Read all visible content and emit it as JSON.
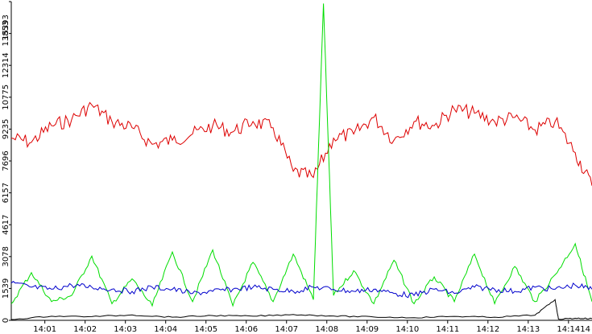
{
  "chart_data": {
    "type": "line",
    "title": "",
    "xlabel": "",
    "ylabel": "",
    "grid": false,
    "legend": "none",
    "ylim": [
      0,
      15393
    ],
    "xlim": [
      "14:00:10",
      "14:14:35"
    ],
    "y_ticks": [
      "0",
      "1539",
      "3078",
      "4617",
      "6157",
      "7696",
      "9235",
      "10775",
      "12314",
      "13853",
      "15393"
    ],
    "x_ticks": [
      "14:01",
      "14:02",
      "14:03",
      "14:04",
      "14:05",
      "14:06",
      "14:07",
      "14:08",
      "14:09",
      "14:10",
      "14:11",
      "14:12",
      "14:13",
      "14:14",
      "14"
    ],
    "series": [
      {
        "color": "#dd0000",
        "x": [
          "14:00:10",
          "14:00:40",
          "14:01:10",
          "14:01:40",
          "14:02:10",
          "14:02:40",
          "14:03:10",
          "14:03:40",
          "14:04:10",
          "14:04:40",
          "14:05:10",
          "14:05:40",
          "14:06:10",
          "14:06:40",
          "14:07:10",
          "14:07:40",
          "14:08:10",
          "14:08:40",
          "14:09:10",
          "14:09:40",
          "14:10:10",
          "14:10:40",
          "14:11:10",
          "14:11:40",
          "14:12:10",
          "14:12:40",
          "14:13:10",
          "14:13:40",
          "14:14:10",
          "14:14:35"
        ],
        "values": [
          8800,
          8600,
          9400,
          9700,
          10400,
          9600,
          9300,
          8500,
          8700,
          9000,
          9400,
          9100,
          9600,
          9300,
          7200,
          6900,
          8800,
          9000,
          9800,
          8700,
          9600,
          9400,
          10200,
          10000,
          9600,
          9800,
          9200,
          9600,
          8100,
          6500
        ]
      },
      {
        "color": "#00dd00",
        "x": [
          "14:00:10",
          "14:00:40",
          "14:01:10",
          "14:01:40",
          "14:02:10",
          "14:02:40",
          "14:03:10",
          "14:03:40",
          "14:04:10",
          "14:04:40",
          "14:05:10",
          "14:05:40",
          "14:06:10",
          "14:06:40",
          "14:07:10",
          "14:07:40",
          "14:07:55",
          "14:08:10",
          "14:08:40",
          "14:09:10",
          "14:09:40",
          "14:10:10",
          "14:10:40",
          "14:11:10",
          "14:11:40",
          "14:12:10",
          "14:12:40",
          "14:13:10",
          "14:13:40",
          "14:14:10",
          "14:14:35"
        ],
        "values": [
          800,
          2300,
          900,
          1200,
          3100,
          800,
          2000,
          700,
          3300,
          900,
          3400,
          700,
          2800,
          900,
          3200,
          1000,
          15300,
          1200,
          2400,
          800,
          2900,
          800,
          2100,
          900,
          3200,
          800,
          2600,
          900,
          2200,
          3700,
          900
        ]
      },
      {
        "color": "#0000cc",
        "x": [
          "14:00:10",
          "14:00:40",
          "14:01:10",
          "14:01:40",
          "14:02:10",
          "14:02:40",
          "14:03:10",
          "14:03:40",
          "14:04:10",
          "14:04:40",
          "14:05:10",
          "14:05:40",
          "14:06:10",
          "14:06:40",
          "14:07:10",
          "14:07:40",
          "14:08:10",
          "14:08:40",
          "14:09:10",
          "14:09:40",
          "14:10:10",
          "14:10:40",
          "14:11:10",
          "14:11:40",
          "14:12:10",
          "14:12:40",
          "14:13:10",
          "14:13:40",
          "14:14:10",
          "14:14:35"
        ],
        "values": [
          1800,
          1600,
          1500,
          1700,
          1600,
          1500,
          1400,
          1600,
          1500,
          1300,
          1400,
          1500,
          1600,
          1500,
          1400,
          1600,
          1500,
          1400,
          1500,
          1300,
          1200,
          1500,
          1300,
          1600,
          1500,
          1400,
          1600,
          1500,
          1700,
          1500
        ]
      },
      {
        "color": "#000000",
        "x": [
          "14:00:10",
          "14:01:10",
          "14:02:10",
          "14:03:10",
          "14:04:10",
          "14:05:10",
          "14:06:10",
          "14:07:10",
          "14:08:10",
          "14:09:10",
          "14:10:10",
          "14:11:10",
          "14:12:10",
          "14:13:10",
          "14:13:40",
          "14:13:45",
          "14:14:10",
          "14:14:35"
        ],
        "values": [
          40,
          200,
          180,
          260,
          150,
          230,
          200,
          280,
          210,
          160,
          130,
          190,
          150,
          250,
          1000,
          60,
          100,
          80
        ]
      }
    ]
  }
}
